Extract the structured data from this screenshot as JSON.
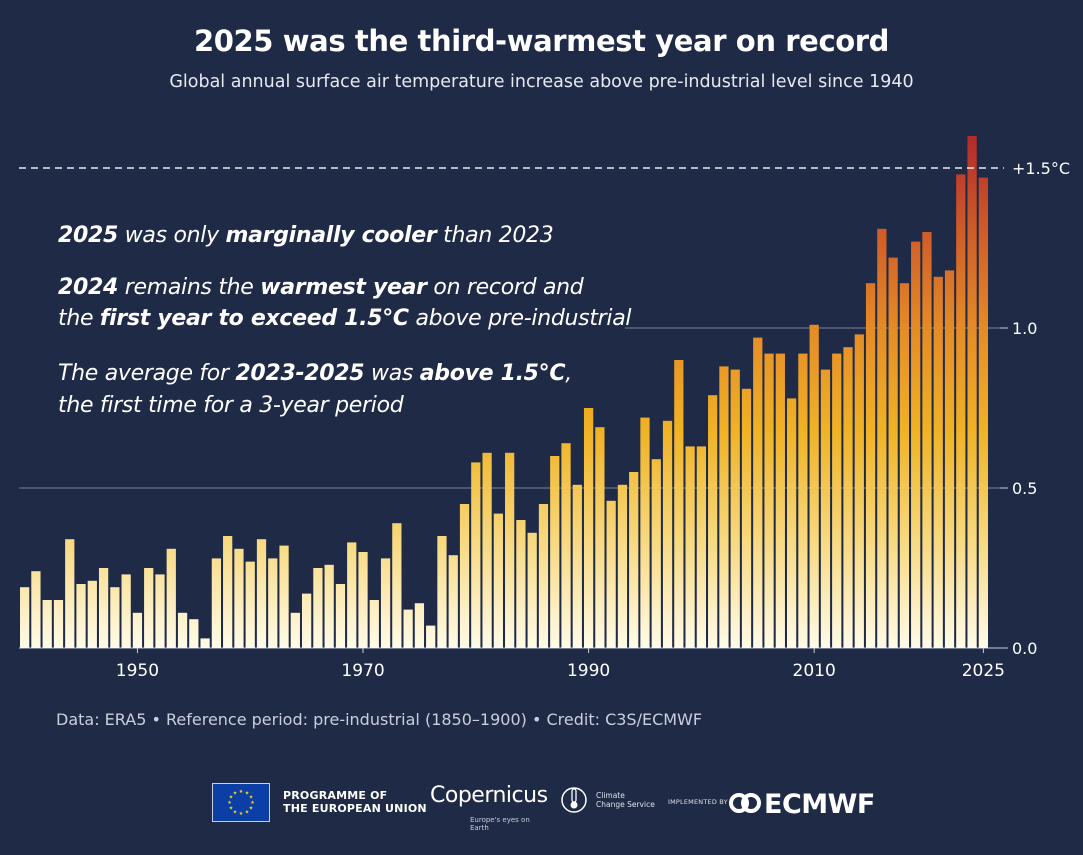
{
  "header": {
    "title": "2025 was the third-warmest year on record",
    "subtitle": "Global annual surface air temperature increase above pre-industrial level since 1940"
  },
  "annotations": {
    "line1": {
      "y2025": "2025",
      "t1": " was only ",
      "marg": "marginally cooler",
      "t2": " than 2023"
    },
    "line2": {
      "y2024": "2024",
      "t1": " remains the ",
      "warm": "warmest year",
      "t2": " on record and"
    },
    "line3": {
      "t1": "the ",
      "first": "first year to exceed 1.5°C",
      "t2": " above pre-industrial"
    },
    "line4": {
      "t1": "The average for ",
      "period": "2023-2025",
      "t2": " was ",
      "above": "above 1.5°C",
      "t3": ","
    },
    "line5": "the first time for a 3-year period"
  },
  "footer": {
    "credit": "Data: ERA5 • Reference period: pre-industrial (1850–1900) • Credit: C3S/ECMWF"
  },
  "logos": {
    "eu_line1": "PROGRAMME OF",
    "eu_line2": "THE EUROPEAN UNION",
    "copernicus": "Copernicus",
    "copernicus_tag": "Europe's eyes on Earth",
    "ccs_line1": "Climate",
    "ccs_line2": "Change Service",
    "implemented": "IMPLEMENTED BY",
    "ecmwf": "ECMWF"
  },
  "chart_data": {
    "type": "bar",
    "title": "2025 was the third-warmest year on record",
    "subtitle": "Global annual surface air temperature increase above pre-industrial level since 1940",
    "xlabel": "",
    "ylabel": "",
    "x": [
      1940,
      1941,
      1942,
      1943,
      1944,
      1945,
      1946,
      1947,
      1948,
      1949,
      1950,
      1951,
      1952,
      1953,
      1954,
      1955,
      1956,
      1957,
      1958,
      1959,
      1960,
      1961,
      1962,
      1963,
      1964,
      1965,
      1966,
      1967,
      1968,
      1969,
      1970,
      1971,
      1972,
      1973,
      1974,
      1975,
      1976,
      1977,
      1978,
      1979,
      1980,
      1981,
      1982,
      1983,
      1984,
      1985,
      1986,
      1987,
      1988,
      1989,
      1990,
      1991,
      1992,
      1993,
      1994,
      1995,
      1996,
      1997,
      1998,
      1999,
      2000,
      2001,
      2002,
      2003,
      2004,
      2005,
      2006,
      2007,
      2008,
      2009,
      2010,
      2011,
      2012,
      2013,
      2014,
      2015,
      2016,
      2017,
      2018,
      2019,
      2020,
      2021,
      2022,
      2023,
      2024,
      2025
    ],
    "values": [
      0.19,
      0.24,
      0.15,
      0.15,
      0.34,
      0.2,
      0.21,
      0.25,
      0.19,
      0.23,
      0.11,
      0.25,
      0.23,
      0.31,
      0.11,
      0.09,
      0.03,
      0.28,
      0.35,
      0.31,
      0.27,
      0.34,
      0.28,
      0.32,
      0.11,
      0.17,
      0.25,
      0.26,
      0.2,
      0.33,
      0.3,
      0.15,
      0.28,
      0.39,
      0.12,
      0.14,
      0.07,
      0.35,
      0.29,
      0.45,
      0.58,
      0.61,
      0.42,
      0.61,
      0.4,
      0.36,
      0.45,
      0.6,
      0.64,
      0.51,
      0.75,
      0.69,
      0.46,
      0.51,
      0.55,
      0.72,
      0.59,
      0.71,
      0.9,
      0.63,
      0.63,
      0.79,
      0.88,
      0.87,
      0.81,
      0.97,
      0.92,
      0.92,
      0.78,
      0.92,
      1.01,
      0.87,
      0.92,
      0.94,
      0.98,
      1.14,
      1.31,
      1.22,
      1.14,
      1.27,
      1.3,
      1.16,
      1.18,
      1.48,
      1.6,
      1.47
    ],
    "x_ticks": [
      1950,
      1970,
      1990,
      2010,
      2025
    ],
    "y_ticks": [
      "0.0",
      "0.5",
      "1.0"
    ],
    "y_tick_values": [
      0.0,
      0.5,
      1.0
    ],
    "reference_line": {
      "value": 1.5,
      "label": "+1.5°C",
      "style": "dashed"
    },
    "ylim": [
      0,
      1.6
    ],
    "xlim": [
      1940,
      2025
    ],
    "grid": "horizontal",
    "colors": {
      "low": "#fffbe8",
      "mid": "#f0b325",
      "high": "#b8302a",
      "background": "#1f2a47",
      "text": "#ffffff"
    }
  }
}
